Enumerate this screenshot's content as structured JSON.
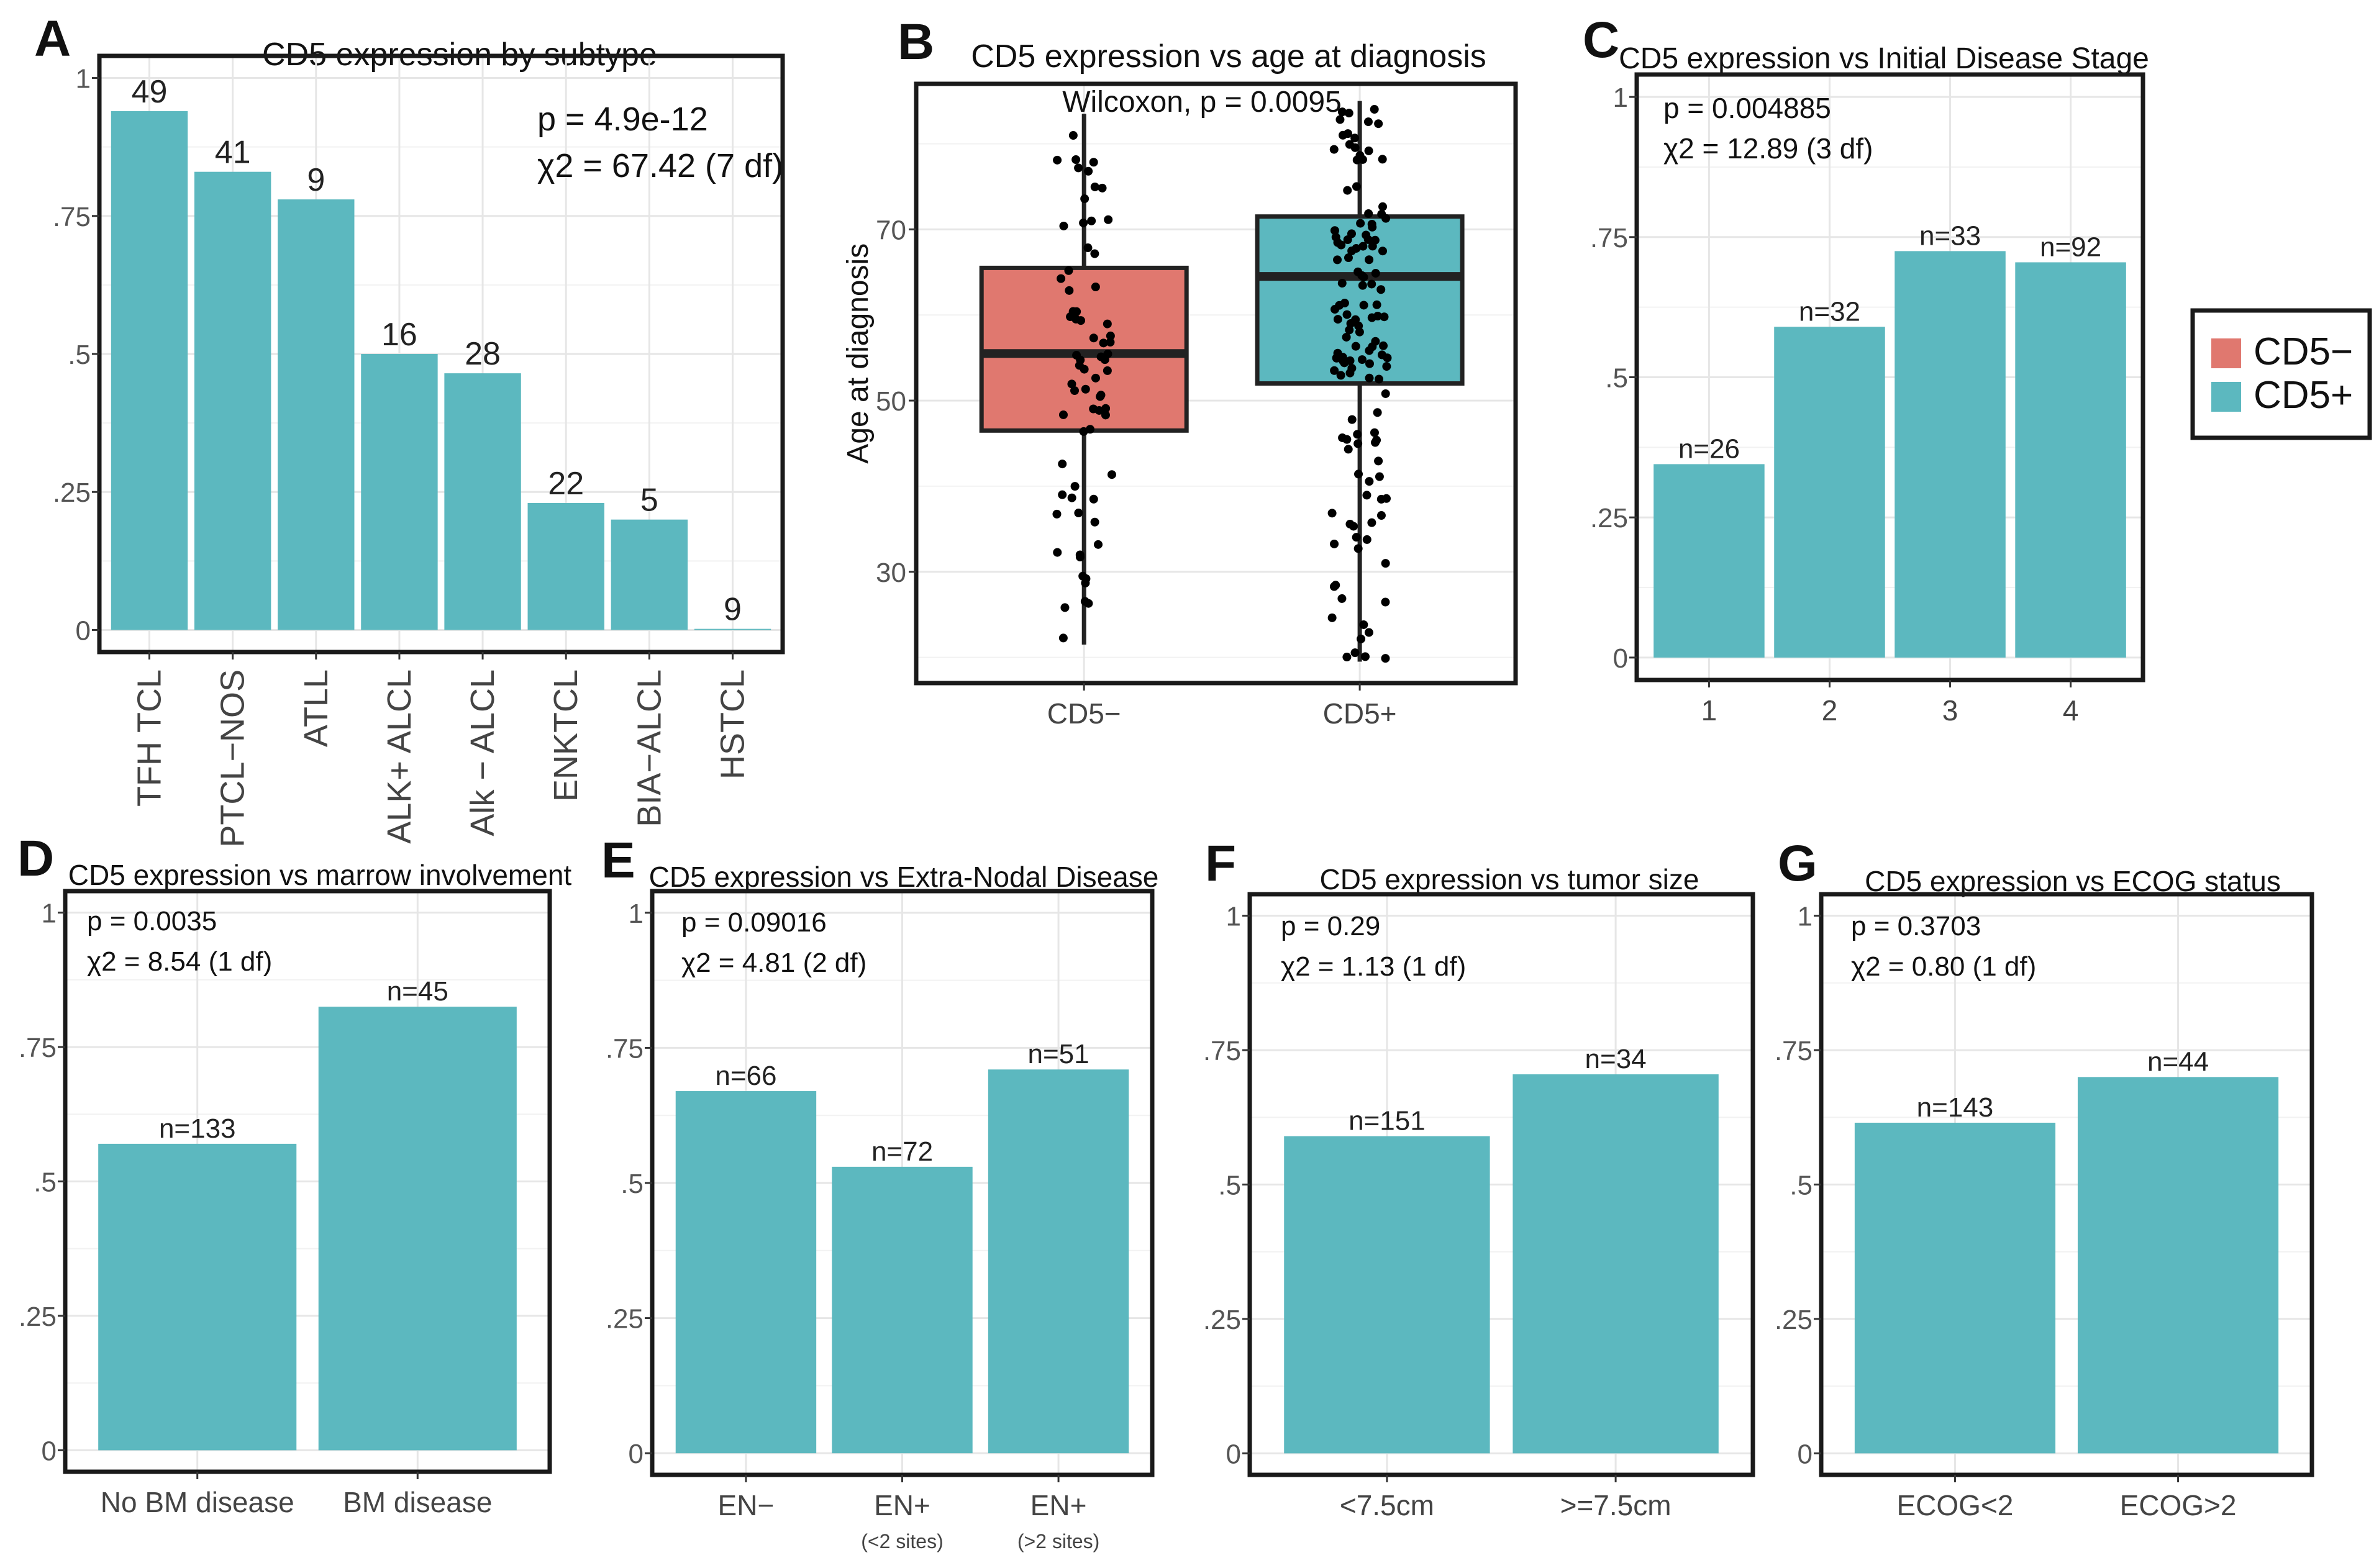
{
  "colors": {
    "teal": "#5cb8bf",
    "salmon": "#e0786f",
    "frame": "#1a1a1a",
    "grid": "#e6e6e6",
    "tick": "#555555",
    "dot": "#000000"
  },
  "legend": {
    "items": [
      {
        "label": "CD5−",
        "color": "#e0786f"
      },
      {
        "label": "CD5+",
        "color": "#5cb8bf"
      }
    ]
  },
  "chart_data": [
    {
      "id": "A",
      "letter": "A",
      "type": "bar",
      "title": "CD5 expression by subtype",
      "categories": [
        "TFH TCL",
        "PTCL−NOS",
        "ATLL",
        "ALK+ ALCL",
        "Alk − ALCL",
        "ENKTCL",
        "BIA−ALCL",
        "HSTCL"
      ],
      "values": [
        0.94,
        0.83,
        0.78,
        0.5,
        0.465,
        0.23,
        0.2,
        0.0
      ],
      "bar_labels": [
        "49",
        "41",
        "9",
        "16",
        "28",
        "22",
        "5",
        "9"
      ],
      "yticks": [
        0,
        0.25,
        0.5,
        0.75,
        1
      ],
      "ytick_labels": [
        "0",
        ".25",
        ".5",
        ".75",
        "1"
      ],
      "ylim": [
        0,
        1
      ],
      "stats": [
        "p = 4.9e-12",
        "χ2 = 67.42 (7 df)"
      ],
      "xlabel": "",
      "ylabel": ""
    },
    {
      "id": "B",
      "letter": "B",
      "type": "box",
      "title": "CD5 expression vs age at diagnosis",
      "categories": [
        "CD5−",
        "CD5+"
      ],
      "ylabel": "Age at diagnosis",
      "ylim": [
        17,
        87
      ],
      "yticks": [
        30,
        50,
        70
      ],
      "ytick_labels": [
        "30",
        "50",
        "70"
      ],
      "annotation": "Wilcoxon, p = 0.0095",
      "boxes": [
        {
          "group": "CD5−",
          "min": 21.5,
          "q1": 46.5,
          "median": 55.5,
          "q3": 65.5,
          "max": 83.5,
          "color": "#e0786f",
          "n_points": 70
        },
        {
          "group": "CD5+",
          "min": 19.5,
          "q1": 52,
          "median": 64.5,
          "q3": 71.5,
          "max": 85,
          "color": "#5cb8bf",
          "n_points": 130
        }
      ]
    },
    {
      "id": "C",
      "letter": "C",
      "type": "bar",
      "title": "CD5 expression vs Initial Disease Stage",
      "categories": [
        "1",
        "2",
        "3",
        "4"
      ],
      "values": [
        0.345,
        0.59,
        0.725,
        0.705
      ],
      "bar_labels": [
        "n=26",
        "n=32",
        "n=33",
        "n=92"
      ],
      "yticks": [
        0,
        0.25,
        0.5,
        0.75,
        1
      ],
      "ytick_labels": [
        "0",
        ".25",
        ".5",
        ".75",
        "1"
      ],
      "ylim": [
        0,
        1
      ],
      "stats": [
        "p = 0.004885",
        "χ2 = 12.89 (3 df)"
      ]
    },
    {
      "id": "D",
      "letter": "D",
      "type": "bar",
      "title": "CD5 expression vs marrow involvement",
      "categories": [
        "No BM disease",
        "BM disease"
      ],
      "values": [
        0.57,
        0.825
      ],
      "bar_labels": [
        "n=133",
        "n=45"
      ],
      "yticks": [
        0,
        0.25,
        0.5,
        0.75,
        1
      ],
      "ytick_labels": [
        "0",
        ".25",
        ".5",
        ".75",
        "1"
      ],
      "ylim": [
        0,
        1
      ],
      "stats": [
        "p = 0.0035",
        "χ2 = 8.54 (1 df)"
      ]
    },
    {
      "id": "E",
      "letter": "E",
      "type": "bar",
      "title": "CD5 expression vs Extra-Nodal Disease",
      "categories": [
        "EN−",
        "EN+",
        "EN+"
      ],
      "category_sublabels": [
        "",
        "(<2 sites)",
        "(>2 sites)"
      ],
      "values": [
        0.67,
        0.53,
        0.71
      ],
      "bar_labels": [
        "n=66",
        "n=72",
        "n=51"
      ],
      "yticks": [
        0,
        0.25,
        0.5,
        0.75,
        1
      ],
      "ytick_labels": [
        "0",
        ".25",
        ".5",
        ".75",
        "1"
      ],
      "ylim": [
        0,
        1
      ],
      "stats": [
        "p = 0.09016",
        "χ2 = 4.81 (2 df)"
      ]
    },
    {
      "id": "F",
      "letter": "F",
      "type": "bar",
      "title": "CD5 expression vs tumor size",
      "categories": [
        "<7.5cm",
        ">=7.5cm"
      ],
      "values": [
        0.59,
        0.705
      ],
      "bar_labels": [
        "n=151",
        "n=34"
      ],
      "yticks": [
        0,
        0.25,
        0.5,
        0.75,
        1
      ],
      "ytick_labels": [
        "0",
        ".25",
        ".5",
        ".75",
        "1"
      ],
      "ylim": [
        0,
        1
      ],
      "stats": [
        "p = 0.29",
        "χ2 = 1.13 (1 df)"
      ]
    },
    {
      "id": "G",
      "letter": "G",
      "type": "bar",
      "title": "CD5 expression vs ECOG status",
      "categories": [
        "ECOG<2",
        "ECOG>2"
      ],
      "values": [
        0.615,
        0.7
      ],
      "bar_labels": [
        "n=143",
        "n=44"
      ],
      "yticks": [
        0,
        0.25,
        0.5,
        0.75,
        1
      ],
      "ytick_labels": [
        "0",
        ".25",
        ".5",
        ".75",
        "1"
      ],
      "ylim": [
        0,
        1
      ],
      "stats": [
        "p = 0.3703",
        "χ2 = 0.80 (1 df)"
      ]
    }
  ]
}
